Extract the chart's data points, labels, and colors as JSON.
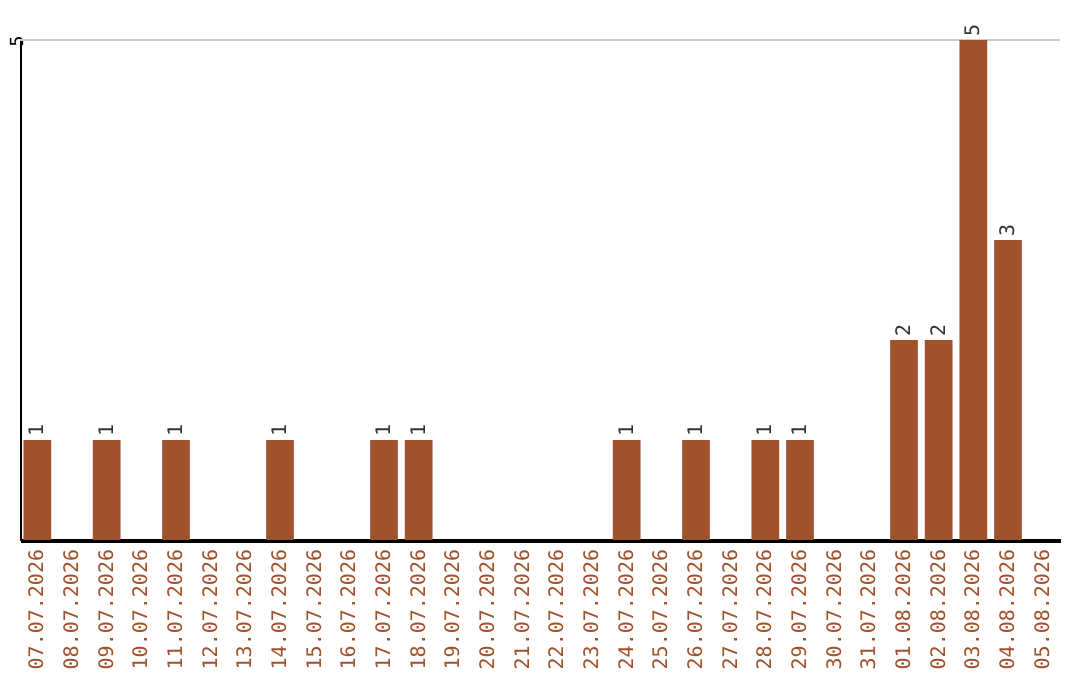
{
  "chart_data": {
    "type": "bar",
    "categories": [
      "07.07.2026",
      "08.07.2026",
      "09.07.2026",
      "10.07.2026",
      "11.07.2026",
      "12.07.2026",
      "13.07.2026",
      "14.07.2026",
      "15.07.2026",
      "16.07.2026",
      "17.07.2026",
      "18.07.2026",
      "19.07.2026",
      "20.07.2026",
      "21.07.2026",
      "22.07.2026",
      "23.07.2026",
      "24.07.2026",
      "25.07.2026",
      "26.07.2026",
      "27.07.2026",
      "28.07.2026",
      "29.07.2026",
      "30.07.2026",
      "31.07.2026",
      "01.08.2026",
      "02.08.2026",
      "03.08.2026",
      "04.08.2026",
      "05.08.2026"
    ],
    "values": [
      1,
      0,
      1,
      0,
      1,
      0,
      0,
      1,
      0,
      0,
      1,
      1,
      0,
      0,
      0,
      0,
      0,
      1,
      0,
      1,
      0,
      1,
      1,
      0,
      0,
      2,
      2,
      5,
      3,
      0
    ],
    "value_labels": [
      "1",
      null,
      "1",
      null,
      "1",
      null,
      null,
      "1",
      null,
      null,
      "1",
      "1",
      null,
      null,
      null,
      null,
      null,
      "1",
      null,
      "1",
      null,
      "1",
      "1",
      null,
      null,
      "2",
      "2",
      "5",
      "3",
      null
    ],
    "color": "#a0522d",
    "ylim": [
      0,
      5
    ],
    "yticks": [
      5
    ],
    "ref_lines": [
      {
        "axis": "y",
        "value": 5,
        "color": "#cccccc"
      }
    ]
  }
}
